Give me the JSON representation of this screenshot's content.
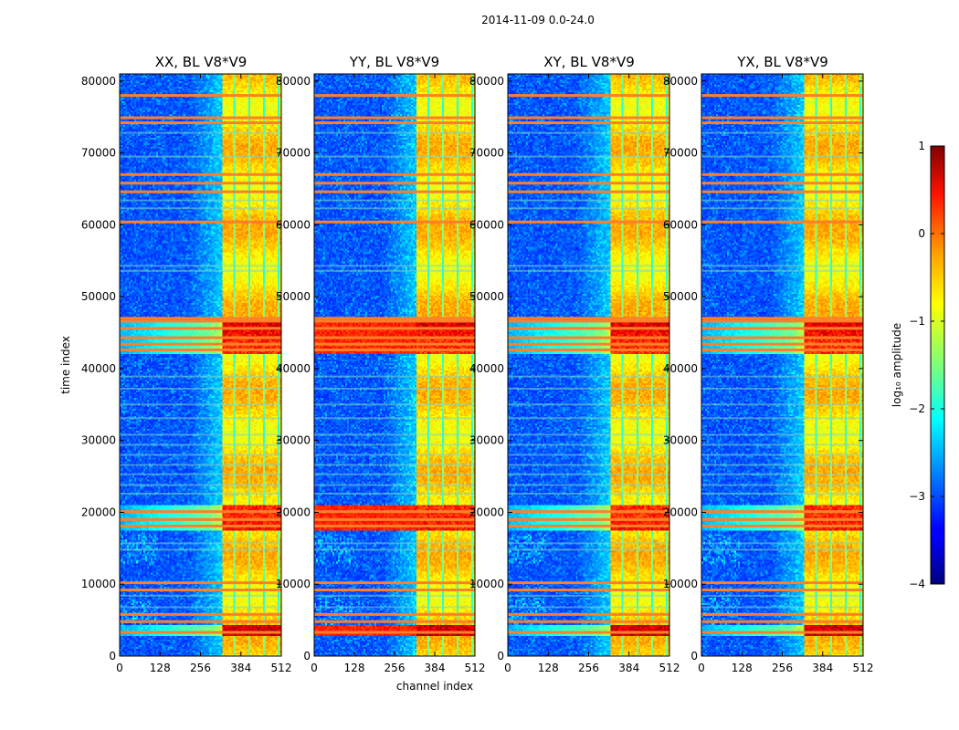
{
  "chart_data": {
    "type": "heatmap",
    "title": "2014-11-09 0.0-24.0",
    "xlabel": "channel index",
    "ylabel": "time index",
    "xlim": [
      0,
      512
    ],
    "ylim": [
      0,
      81000
    ],
    "x_ticks": [
      0,
      128,
      256,
      384,
      512
    ],
    "y_ticks": [
      0,
      10000,
      20000,
      30000,
      40000,
      50000,
      60000,
      70000,
      80000
    ],
    "colorbar": {
      "label": "log₁₀ amplitude",
      "range": [
        -4,
        1
      ],
      "ticks": [
        1,
        0,
        -1,
        -2,
        -3,
        -4
      ],
      "tick_labels": [
        "1",
        "0",
        "−1",
        "−2",
        "−3",
        "−4"
      ],
      "colormap": "jet"
    },
    "panels": [
      {
        "title": "XX, BL V8*V9",
        "pol": "XX"
      },
      {
        "title": "YY, BL V8*V9",
        "pol": "YY"
      },
      {
        "title": "XY, BL V8*V9",
        "pol": "XY"
      },
      {
        "title": "YX, BL V8*V9",
        "pol": "YX"
      }
    ],
    "hot_channel_range": [
      325,
      512
    ],
    "bright_time_bands": [
      [
        2800,
        4300
      ],
      [
        17500,
        21000
      ],
      [
        42000,
        46500
      ]
    ],
    "flagged_rows_mid": [
      3300,
      4800,
      5800,
      9200,
      10200,
      18100,
      19000,
      20100,
      42600,
      43400,
      44300,
      45600,
      46600,
      47000,
      60400,
      64600,
      65800,
      67000,
      74200,
      74900,
      78000
    ],
    "flagged_rows_faint": [
      6800,
      8400,
      14800,
      15700,
      22600,
      23800,
      25300,
      26600,
      28000,
      29400,
      30800,
      33100,
      35000,
      37200,
      38900,
      53600,
      54300,
      62300,
      63400,
      69500,
      72800
    ]
  }
}
